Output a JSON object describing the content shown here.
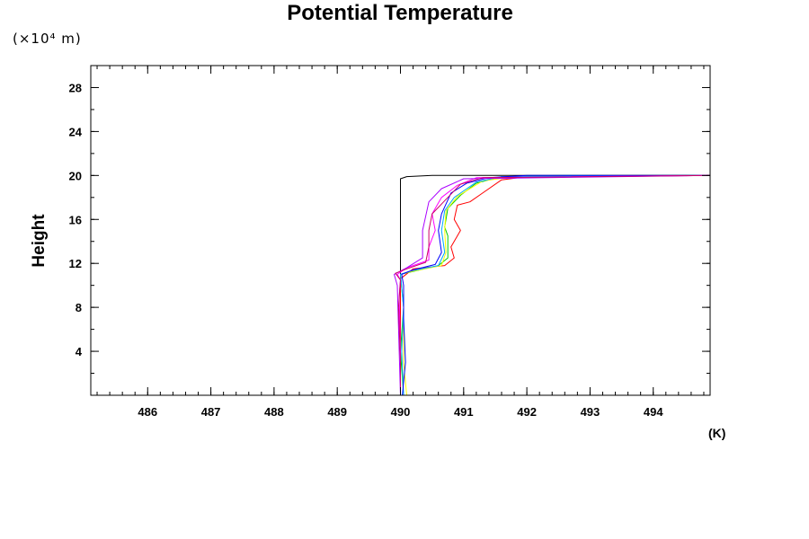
{
  "chart_data": {
    "type": "line",
    "title": "Potential Temperature",
    "ylabel": "Height",
    "yunit": "(×10⁴ m)",
    "xunit": "(K)",
    "xlim": [
      485.1,
      494.9
    ],
    "ylim": [
      0,
      30
    ],
    "xticks": [
      486,
      487,
      488,
      489,
      490,
      491,
      492,
      493,
      494
    ],
    "yticks": [
      4,
      8,
      12,
      16,
      20,
      24,
      28
    ],
    "x_minor_step": 0.2,
    "y_minor_step": 2,
    "grid": false,
    "legend": "none",
    "series": [
      {
        "color": "#000000",
        "points": [
          [
            490.0,
            0
          ],
          [
            490.0,
            4
          ],
          [
            490.0,
            8
          ],
          [
            490.0,
            11.5
          ],
          [
            490.0,
            15
          ],
          [
            490.0,
            19.7
          ],
          [
            490.1,
            19.9
          ],
          [
            490.5,
            20.0
          ],
          [
            494.9,
            20.0
          ]
        ]
      },
      {
        "color": "#ff0000",
        "points": [
          [
            490.0,
            0
          ],
          [
            490.0,
            4
          ],
          [
            490.0,
            8
          ],
          [
            490.0,
            10.6
          ],
          [
            490.2,
            11.5
          ],
          [
            490.7,
            11.8
          ],
          [
            490.85,
            12.5
          ],
          [
            490.8,
            13.5
          ],
          [
            490.95,
            15.0
          ],
          [
            490.85,
            16.0
          ],
          [
            490.9,
            17.3
          ],
          [
            491.1,
            17.6
          ],
          [
            491.3,
            18.4
          ],
          [
            491.6,
            19.6
          ],
          [
            492.0,
            19.9
          ],
          [
            493.0,
            20.0
          ],
          [
            494.9,
            20.0
          ]
        ]
      },
      {
        "color": "#00cc00",
        "points": [
          [
            490.05,
            0
          ],
          [
            490.0,
            4
          ],
          [
            490.05,
            8
          ],
          [
            490.0,
            11.0
          ],
          [
            490.15,
            11.2
          ],
          [
            490.6,
            11.8
          ],
          [
            490.75,
            12.5
          ],
          [
            490.75,
            14.5
          ],
          [
            490.7,
            15.3
          ],
          [
            490.75,
            17.0
          ],
          [
            490.95,
            18.2
          ],
          [
            491.2,
            19.3
          ],
          [
            491.6,
            19.9
          ],
          [
            492.5,
            20.0
          ],
          [
            494.9,
            20.0
          ]
        ]
      },
      {
        "color": "#ffff00",
        "points": [
          [
            490.1,
            0
          ],
          [
            490.05,
            3
          ],
          [
            490.05,
            8
          ],
          [
            490.0,
            11.0
          ],
          [
            490.2,
            11.3
          ],
          [
            490.65,
            11.8
          ],
          [
            490.72,
            13.0
          ],
          [
            490.7,
            15.0
          ],
          [
            490.72,
            16.8
          ],
          [
            490.9,
            18.1
          ],
          [
            491.3,
            19.5
          ],
          [
            491.8,
            19.9
          ],
          [
            494.9,
            20.0
          ]
        ]
      },
      {
        "color": "#00aaff",
        "points": [
          [
            490.05,
            0
          ],
          [
            490.02,
            4
          ],
          [
            490.05,
            8
          ],
          [
            490.0,
            11.0
          ],
          [
            490.15,
            11.3
          ],
          [
            490.6,
            11.8
          ],
          [
            490.7,
            13.0
          ],
          [
            490.65,
            15.0
          ],
          [
            490.7,
            16.8
          ],
          [
            490.85,
            18.0
          ],
          [
            491.2,
            19.4
          ],
          [
            491.6,
            19.9
          ],
          [
            494.9,
            20.0
          ]
        ]
      },
      {
        "color": "#0000ff",
        "points": [
          [
            490.03,
            0
          ],
          [
            490.08,
            3
          ],
          [
            490.05,
            7
          ],
          [
            490.05,
            10.0
          ],
          [
            490.02,
            11.0
          ],
          [
            490.2,
            11.4
          ],
          [
            490.55,
            11.9
          ],
          [
            490.65,
            13.0
          ],
          [
            490.6,
            15.0
          ],
          [
            490.65,
            16.5
          ],
          [
            490.8,
            18.4
          ],
          [
            491.05,
            19.3
          ],
          [
            491.4,
            19.8
          ],
          [
            492.0,
            20.0
          ],
          [
            494.9,
            20.0
          ]
        ]
      },
      {
        "color": "#ff00ff",
        "points": [
          [
            490.0,
            0
          ],
          [
            490.0,
            4
          ],
          [
            489.98,
            9
          ],
          [
            490.0,
            10.5
          ],
          [
            489.95,
            11.0
          ],
          [
            490.1,
            11.6
          ],
          [
            490.45,
            12.3
          ],
          [
            490.45,
            13.5
          ],
          [
            490.55,
            15.0
          ],
          [
            490.5,
            16.5
          ],
          [
            490.65,
            18.0
          ],
          [
            490.9,
            19.1
          ],
          [
            491.2,
            19.8
          ],
          [
            494.9,
            20.0
          ]
        ]
      },
      {
        "color": "#aa00ff",
        "points": [
          [
            490.0,
            0
          ],
          [
            489.98,
            4
          ],
          [
            489.95,
            10.0
          ],
          [
            489.9,
            11.0
          ],
          [
            490.1,
            11.6
          ],
          [
            490.35,
            12.5
          ],
          [
            490.35,
            15.0
          ],
          [
            490.45,
            17.6
          ],
          [
            490.65,
            18.8
          ],
          [
            491.0,
            19.7
          ],
          [
            494.9,
            20.0
          ]
        ]
      },
      {
        "color": "#cc0066",
        "points": [
          [
            490.0,
            0
          ],
          [
            490.0,
            3
          ],
          [
            489.97,
            8
          ],
          [
            490.0,
            10.5
          ],
          [
            489.92,
            11.1
          ],
          [
            490.1,
            11.5
          ],
          [
            490.4,
            12.1
          ],
          [
            490.45,
            13.5
          ],
          [
            490.45,
            15.0
          ],
          [
            490.5,
            16.5
          ],
          [
            490.75,
            18.0
          ],
          [
            490.95,
            19.2
          ],
          [
            491.3,
            19.8
          ],
          [
            494.9,
            20.0
          ]
        ]
      }
    ]
  }
}
